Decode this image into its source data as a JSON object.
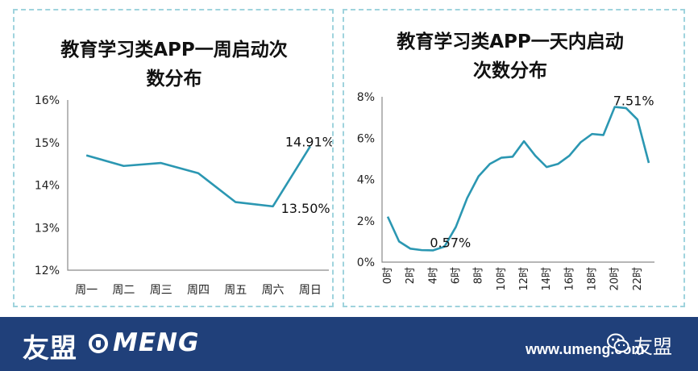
{
  "chart_data": [
    {
      "type": "line",
      "title_lines": [
        "教育学习类APP一周启动次",
        "数分布"
      ],
      "categories": [
        "周一",
        "周二",
        "周三",
        "周四",
        "周五",
        "周六",
        "周日"
      ],
      "values": [
        14.7,
        14.45,
        14.52,
        14.28,
        13.6,
        13.5,
        14.91
      ],
      "y_ticks": [
        "16%",
        "15%",
        "14%",
        "13%",
        "12%"
      ],
      "ylim": [
        12,
        16
      ],
      "annotations": [
        {
          "index": 6,
          "text": "14.91%"
        },
        {
          "index": 5,
          "text": "13.50%"
        }
      ],
      "color": "#2b97b2",
      "grid": false
    },
    {
      "type": "line",
      "title_lines": [
        "教育学习类APP一天内启动",
        "次数分布"
      ],
      "categories": [
        "0时",
        "1时",
        "2时",
        "3时",
        "4时",
        "5时",
        "6时",
        "7时",
        "8时",
        "9时",
        "10时",
        "11时",
        "12时",
        "13时",
        "14时",
        "15时",
        "16时",
        "17时",
        "18时",
        "19时",
        "20时",
        "21时",
        "22时",
        "23时"
      ],
      "x_tick_labels": [
        "0时",
        "2时",
        "4时",
        "6时",
        "8时",
        "10时",
        "12时",
        "14时",
        "16时",
        "18时",
        "20时",
        "22时"
      ],
      "values": [
        2.2,
        1.0,
        0.65,
        0.58,
        0.57,
        0.75,
        1.7,
        3.1,
        4.15,
        4.75,
        5.05,
        5.1,
        5.85,
        5.15,
        4.6,
        4.75,
        5.15,
        5.8,
        6.2,
        6.15,
        7.51,
        7.45,
        6.9,
        4.8
      ],
      "y_ticks": [
        "8%",
        "6%",
        "4%",
        "2%",
        "0%"
      ],
      "ylim": [
        0,
        8
      ],
      "annotations": [
        {
          "index": 20,
          "text": "7.51%"
        },
        {
          "index": 4,
          "text": "0.57%"
        }
      ],
      "color": "#2b97b2",
      "grid": false
    }
  ],
  "footer": {
    "brand_cn": "友盟",
    "brand_en": "MENG",
    "site": "www.umeng.com",
    "wechat_name": "友盟",
    "background": "#20407a"
  }
}
